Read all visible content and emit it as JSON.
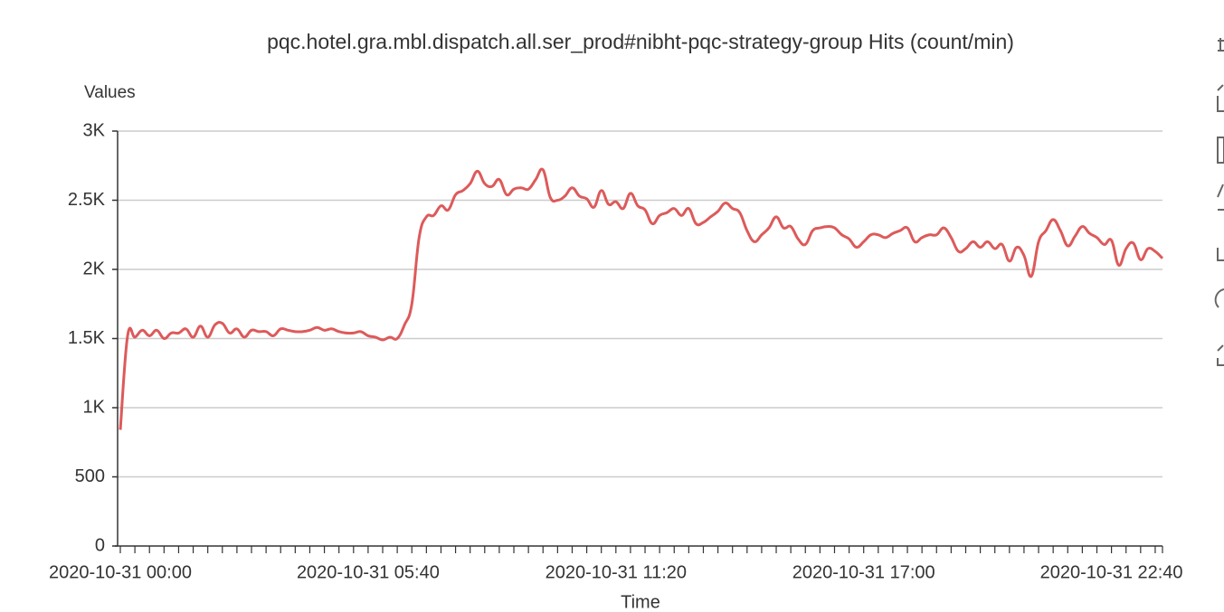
{
  "chart_data": {
    "type": "line",
    "title": "pqc.hotel.gra.mbl.dispatch.all.ser_prod#nibht-pqc-strategy-group Hits (count/min)",
    "y_label": "Values",
    "x_label": "Time",
    "categories": [
      "2020-10-31 00:00",
      null,
      null,
      null,
      null,
      null,
      null,
      null,
      null,
      null,
      null,
      null,
      null,
      null,
      null,
      null,
      null,
      null,
      null,
      null,
      null,
      null,
      null,
      null,
      null,
      null,
      null,
      null,
      null,
      null,
      null,
      null,
      null,
      null,
      "2020-10-31 05:40",
      null,
      null,
      null,
      null,
      null,
      null,
      null,
      null,
      null,
      null,
      null,
      null,
      null,
      null,
      null,
      null,
      null,
      null,
      null,
      null,
      null,
      null,
      null,
      null,
      null,
      null,
      null,
      null,
      null,
      null,
      null,
      null,
      null,
      "2020-10-31 11:20",
      null,
      null,
      null,
      null,
      null,
      null,
      null,
      null,
      null,
      null,
      null,
      null,
      null,
      null,
      null,
      null,
      null,
      null,
      null,
      null,
      null,
      null,
      null,
      null,
      null,
      null,
      null,
      null,
      null,
      null,
      null,
      null,
      null,
      "2020-10-31 17:00",
      null,
      null,
      null,
      null,
      null,
      null,
      null,
      null,
      null,
      null,
      null,
      null,
      null,
      null,
      null,
      null,
      null,
      null,
      null,
      null,
      null,
      null,
      null,
      null,
      null,
      null,
      null,
      null,
      null,
      null,
      null,
      null,
      null,
      "2020-10-31 22:40",
      null,
      null,
      null,
      null,
      null,
      null,
      null
    ],
    "values": [
      840,
      1520,
      1510,
      1560,
      1520,
      1560,
      1500,
      1540,
      1540,
      1570,
      1510,
      1590,
      1510,
      1600,
      1610,
      1540,
      1570,
      1510,
      1560,
      1550,
      1550,
      1520,
      1570,
      1560,
      1550,
      1550,
      1560,
      1580,
      1560,
      1570,
      1550,
      1540,
      1540,
      1550,
      1520,
      1510,
      1490,
      1510,
      1500,
      1600,
      1750,
      2230,
      2380,
      2390,
      2460,
      2430,
      2540,
      2570,
      2620,
      2710,
      2620,
      2600,
      2650,
      2540,
      2580,
      2590,
      2580,
      2650,
      2720,
      2520,
      2500,
      2530,
      2590,
      2530,
      2510,
      2450,
      2570,
      2470,
      2490,
      2440,
      2550,
      2460,
      2430,
      2330,
      2390,
      2410,
      2440,
      2390,
      2440,
      2330,
      2340,
      2380,
      2420,
      2480,
      2440,
      2410,
      2280,
      2200,
      2250,
      2300,
      2380,
      2300,
      2310,
      2220,
      2180,
      2280,
      2300,
      2310,
      2300,
      2250,
      2220,
      2160,
      2200,
      2250,
      2250,
      2230,
      2260,
      2280,
      2300,
      2200,
      2230,
      2250,
      2250,
      2300,
      2230,
      2130,
      2150,
      2200,
      2160,
      2200,
      2150,
      2180,
      2060,
      2160,
      2100,
      1950,
      2200,
      2280,
      2360,
      2280,
      2170,
      2240,
      2310,
      2260,
      2230,
      2180,
      2210,
      2030,
      2150,
      2190,
      2070,
      2150,
      2130,
      2080
    ],
    "color": "#dd5a5a",
    "ylim": [
      0,
      3000
    ],
    "yticks": [
      0,
      500,
      {
        "value": 1000,
        "label": "1K"
      },
      {
        "value": 1500,
        "label": "1.5K"
      },
      {
        "value": 2000,
        "label": "2K"
      },
      {
        "value": 2500,
        "label": "2.5K"
      },
      {
        "value": 3000,
        "label": "3K"
      }
    ],
    "grid": true
  }
}
